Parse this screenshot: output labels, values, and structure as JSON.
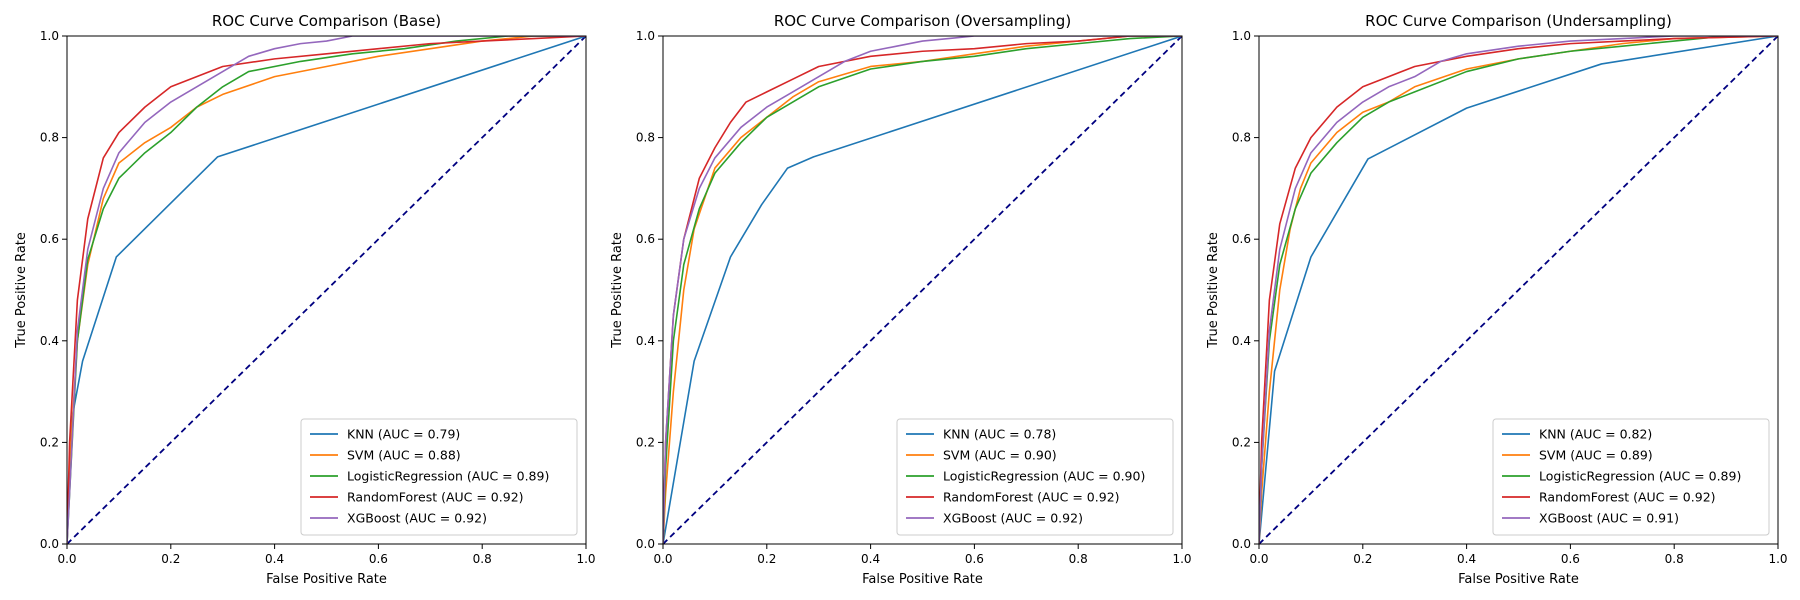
{
  "chart_data": [
    {
      "type": "line",
      "title": "ROC Curve Comparison (Base)",
      "xlabel": "False Positive Rate",
      "ylabel": "True Positive Rate",
      "xlim": [
        0,
        1
      ],
      "ylim": [
        0,
        1
      ],
      "xticks": [
        "0.0",
        "0.2",
        "0.4",
        "0.6",
        "0.8",
        "1.0"
      ],
      "yticks": [
        "0.0",
        "0.2",
        "0.4",
        "0.6",
        "0.8",
        "1.0"
      ],
      "legend_position": "lower-right",
      "grid": false,
      "diagonal": {
        "color": "#000080",
        "style": "dashed"
      },
      "series": [
        {
          "name": "KNN (AUC = 0.79)",
          "color": "#1f77b4",
          "points": [
            [
              0,
              0
            ],
            [
              0.01,
              0.25
            ],
            [
              0.03,
              0.36
            ],
            [
              0.095,
              0.565
            ],
            [
              0.29,
              0.762
            ],
            [
              1,
              1
            ]
          ]
        },
        {
          "name": "SVM (AUC = 0.88)",
          "color": "#ff7f0e",
          "points": [
            [
              0,
              0
            ],
            [
              0.005,
              0.15
            ],
            [
              0.02,
              0.4
            ],
            [
              0.04,
              0.55
            ],
            [
              0.07,
              0.68
            ],
            [
              0.1,
              0.75
            ],
            [
              0.15,
              0.79
            ],
            [
              0.2,
              0.82
            ],
            [
              0.25,
              0.86
            ],
            [
              0.3,
              0.885
            ],
            [
              0.4,
              0.92
            ],
            [
              0.5,
              0.94
            ],
            [
              0.6,
              0.96
            ],
            [
              0.7,
              0.975
            ],
            [
              0.8,
              0.99
            ],
            [
              0.9,
              1
            ],
            [
              1,
              1
            ]
          ]
        },
        {
          "name": "LogisticRegression (AUC = 0.89)",
          "color": "#2ca02c",
          "points": [
            [
              0,
              0
            ],
            [
              0.005,
              0.1
            ],
            [
              0.02,
              0.4
            ],
            [
              0.04,
              0.56
            ],
            [
              0.07,
              0.66
            ],
            [
              0.1,
              0.72
            ],
            [
              0.15,
              0.77
            ],
            [
              0.2,
              0.81
            ],
            [
              0.25,
              0.86
            ],
            [
              0.3,
              0.9
            ],
            [
              0.35,
              0.93
            ],
            [
              0.45,
              0.95
            ],
            [
              0.55,
              0.965
            ],
            [
              0.65,
              0.975
            ],
            [
              0.75,
              0.99
            ],
            [
              0.85,
              1
            ],
            [
              1,
              1
            ]
          ]
        },
        {
          "name": "RandomForest (AUC = 0.92)",
          "color": "#d62728",
          "points": [
            [
              0,
              0
            ],
            [
              0.005,
              0.2
            ],
            [
              0.02,
              0.48
            ],
            [
              0.04,
              0.64
            ],
            [
              0.07,
              0.76
            ],
            [
              0.1,
              0.81
            ],
            [
              0.15,
              0.86
            ],
            [
              0.2,
              0.9
            ],
            [
              0.25,
              0.92
            ],
            [
              0.3,
              0.94
            ],
            [
              0.4,
              0.955
            ],
            [
              0.5,
              0.965
            ],
            [
              0.6,
              0.975
            ],
            [
              0.7,
              0.985
            ],
            [
              0.8,
              0.99
            ],
            [
              0.9,
              0.995
            ],
            [
              1,
              1
            ]
          ]
        },
        {
          "name": "XGBoost (AUC = 0.92)",
          "color": "#9467bd",
          "points": [
            [
              0,
              0
            ],
            [
              0.005,
              0.1
            ],
            [
              0.02,
              0.42
            ],
            [
              0.04,
              0.58
            ],
            [
              0.07,
              0.7
            ],
            [
              0.1,
              0.77
            ],
            [
              0.15,
              0.83
            ],
            [
              0.2,
              0.87
            ],
            [
              0.25,
              0.9
            ],
            [
              0.3,
              0.93
            ],
            [
              0.35,
              0.96
            ],
            [
              0.4,
              0.975
            ],
            [
              0.45,
              0.985
            ],
            [
              0.5,
              0.99
            ],
            [
              0.55,
              1
            ],
            [
              1,
              1
            ]
          ]
        }
      ]
    },
    {
      "type": "line",
      "title": "ROC Curve Comparison (Oversampling)",
      "xlabel": "False Positive Rate",
      "ylabel": "True Positive Rate",
      "xlim": [
        0,
        1
      ],
      "ylim": [
        0,
        1
      ],
      "xticks": [
        "0.0",
        "0.2",
        "0.4",
        "0.6",
        "0.8",
        "1.0"
      ],
      "yticks": [
        "0.0",
        "0.2",
        "0.4",
        "0.6",
        "0.8",
        "1.0"
      ],
      "legend_position": "lower-right",
      "grid": false,
      "diagonal": {
        "color": "#000080",
        "style": "dashed"
      },
      "series": [
        {
          "name": "KNN (AUC = 0.78)",
          "color": "#1f77b4",
          "points": [
            [
              0,
              0
            ],
            [
              0.06,
              0.36
            ],
            [
              0.13,
              0.565
            ],
            [
              0.19,
              0.668
            ],
            [
              0.24,
              0.74
            ],
            [
              0.29,
              0.762
            ],
            [
              1,
              1
            ]
          ]
        },
        {
          "name": "SVM (AUC = 0.90)",
          "color": "#ff7f0e",
          "points": [
            [
              0,
              0
            ],
            [
              0.005,
              0.1
            ],
            [
              0.02,
              0.3
            ],
            [
              0.04,
              0.5
            ],
            [
              0.06,
              0.62
            ],
            [
              0.08,
              0.68
            ],
            [
              0.1,
              0.74
            ],
            [
              0.15,
              0.8
            ],
            [
              0.2,
              0.84
            ],
            [
              0.25,
              0.88
            ],
            [
              0.3,
              0.91
            ],
            [
              0.4,
              0.94
            ],
            [
              0.5,
              0.95
            ],
            [
              0.6,
              0.965
            ],
            [
              0.7,
              0.98
            ],
            [
              0.8,
              0.99
            ],
            [
              0.9,
              1
            ],
            [
              1,
              1
            ]
          ]
        },
        {
          "name": "LogisticRegression (AUC = 0.90)",
          "color": "#2ca02c",
          "points": [
            [
              0,
              0
            ],
            [
              0.005,
              0.15
            ],
            [
              0.02,
              0.4
            ],
            [
              0.04,
              0.55
            ],
            [
              0.07,
              0.66
            ],
            [
              0.1,
              0.73
            ],
            [
              0.15,
              0.79
            ],
            [
              0.2,
              0.84
            ],
            [
              0.25,
              0.87
            ],
            [
              0.3,
              0.9
            ],
            [
              0.4,
              0.935
            ],
            [
              0.5,
              0.95
            ],
            [
              0.6,
              0.96
            ],
            [
              0.7,
              0.975
            ],
            [
              0.8,
              0.985
            ],
            [
              0.9,
              0.995
            ],
            [
              1,
              1
            ]
          ]
        },
        {
          "name": "RandomForest (AUC = 0.92)",
          "color": "#d62728",
          "points": [
            [
              0,
              0
            ],
            [
              0.005,
              0.2
            ],
            [
              0.02,
              0.45
            ],
            [
              0.04,
              0.6
            ],
            [
              0.07,
              0.72
            ],
            [
              0.1,
              0.78
            ],
            [
              0.13,
              0.83
            ],
            [
              0.16,
              0.87
            ],
            [
              0.2,
              0.89
            ],
            [
              0.25,
              0.915
            ],
            [
              0.3,
              0.94
            ],
            [
              0.4,
              0.96
            ],
            [
              0.5,
              0.97
            ],
            [
              0.6,
              0.975
            ],
            [
              0.7,
              0.985
            ],
            [
              0.8,
              0.99
            ],
            [
              0.9,
              1
            ],
            [
              1,
              1
            ]
          ]
        },
        {
          "name": "XGBoost (AUC = 0.92)",
          "color": "#9467bd",
          "points": [
            [
              0,
              0
            ],
            [
              0.005,
              0.2
            ],
            [
              0.02,
              0.45
            ],
            [
              0.04,
              0.6
            ],
            [
              0.07,
              0.7
            ],
            [
              0.1,
              0.76
            ],
            [
              0.15,
              0.82
            ],
            [
              0.2,
              0.86
            ],
            [
              0.25,
              0.89
            ],
            [
              0.3,
              0.92
            ],
            [
              0.35,
              0.95
            ],
            [
              0.4,
              0.97
            ],
            [
              0.45,
              0.98
            ],
            [
              0.5,
              0.99
            ],
            [
              0.55,
              0.995
            ],
            [
              0.6,
              1
            ],
            [
              1,
              1
            ]
          ]
        }
      ]
    },
    {
      "type": "line",
      "title": "ROC Curve Comparison (Undersampling)",
      "xlabel": "False Positive Rate",
      "ylabel": "True Positive Rate",
      "xlim": [
        0,
        1
      ],
      "ylim": [
        0,
        1
      ],
      "xticks": [
        "0.0",
        "0.2",
        "0.4",
        "0.6",
        "0.8",
        "1.0"
      ],
      "yticks": [
        "0.0",
        "0.2",
        "0.4",
        "0.6",
        "0.8",
        "1.0"
      ],
      "legend_position": "lower-right",
      "grid": false,
      "diagonal": {
        "color": "#000080",
        "style": "dashed"
      },
      "series": [
        {
          "name": "KNN (AUC = 0.82)",
          "color": "#1f77b4",
          "points": [
            [
              0,
              0
            ],
            [
              0.03,
              0.34
            ],
            [
              0.1,
              0.565
            ],
            [
              0.21,
              0.758
            ],
            [
              0.4,
              0.858
            ],
            [
              0.66,
              0.945
            ],
            [
              1,
              1
            ]
          ]
        },
        {
          "name": "SVM (AUC = 0.89)",
          "color": "#ff7f0e",
          "points": [
            [
              0,
              0
            ],
            [
              0.005,
              0.1
            ],
            [
              0.02,
              0.3
            ],
            [
              0.04,
              0.5
            ],
            [
              0.06,
              0.62
            ],
            [
              0.08,
              0.7
            ],
            [
              0.1,
              0.75
            ],
            [
              0.15,
              0.81
            ],
            [
              0.2,
              0.85
            ],
            [
              0.25,
              0.87
            ],
            [
              0.3,
              0.9
            ],
            [
              0.4,
              0.935
            ],
            [
              0.5,
              0.955
            ],
            [
              0.6,
              0.97
            ],
            [
              0.7,
              0.985
            ],
            [
              0.8,
              0.995
            ],
            [
              1,
              1
            ]
          ]
        },
        {
          "name": "LogisticRegression (AUC = 0.89)",
          "color": "#2ca02c",
          "points": [
            [
              0,
              0
            ],
            [
              0.005,
              0.15
            ],
            [
              0.02,
              0.4
            ],
            [
              0.04,
              0.55
            ],
            [
              0.07,
              0.66
            ],
            [
              0.1,
              0.73
            ],
            [
              0.15,
              0.79
            ],
            [
              0.2,
              0.84
            ],
            [
              0.25,
              0.87
            ],
            [
              0.3,
              0.89
            ],
            [
              0.4,
              0.93
            ],
            [
              0.5,
              0.955
            ],
            [
              0.6,
              0.97
            ],
            [
              0.7,
              0.98
            ],
            [
              0.8,
              0.99
            ],
            [
              0.9,
              1
            ],
            [
              1,
              1
            ]
          ]
        },
        {
          "name": "RandomForest (AUC = 0.92)",
          "color": "#d62728",
          "points": [
            [
              0,
              0
            ],
            [
              0.005,
              0.2
            ],
            [
              0.02,
              0.48
            ],
            [
              0.04,
              0.63
            ],
            [
              0.07,
              0.74
            ],
            [
              0.1,
              0.8
            ],
            [
              0.15,
              0.86
            ],
            [
              0.2,
              0.9
            ],
            [
              0.25,
              0.92
            ],
            [
              0.3,
              0.94
            ],
            [
              0.4,
              0.96
            ],
            [
              0.5,
              0.975
            ],
            [
              0.6,
              0.985
            ],
            [
              0.7,
              0.99
            ],
            [
              0.8,
              0.995
            ],
            [
              1,
              1
            ]
          ]
        },
        {
          "name": "XGBoost (AUC = 0.91)",
          "color": "#9467bd",
          "points": [
            [
              0,
              0
            ],
            [
              0.005,
              0.15
            ],
            [
              0.02,
              0.42
            ],
            [
              0.04,
              0.58
            ],
            [
              0.07,
              0.7
            ],
            [
              0.1,
              0.77
            ],
            [
              0.15,
              0.83
            ],
            [
              0.2,
              0.87
            ],
            [
              0.25,
              0.9
            ],
            [
              0.3,
              0.92
            ],
            [
              0.35,
              0.95
            ],
            [
              0.4,
              0.965
            ],
            [
              0.5,
              0.98
            ],
            [
              0.6,
              0.99
            ],
            [
              0.7,
              0.995
            ],
            [
              0.8,
              1
            ],
            [
              1,
              1
            ]
          ]
        }
      ]
    }
  ]
}
